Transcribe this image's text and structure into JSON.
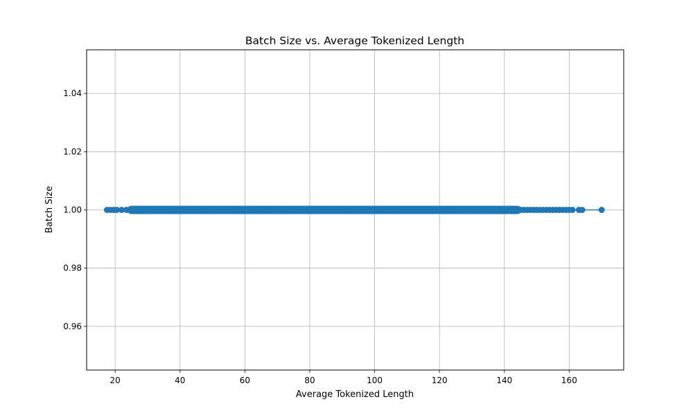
{
  "chart_data": {
    "type": "line",
    "title": "Batch Size vs. Average Tokenized Length",
    "xlabel": "Average Tokenized Length",
    "ylabel": "Batch Size",
    "xlim": [
      11.2,
      176.8
    ],
    "ylim": [
      0.945,
      1.055
    ],
    "x_ticks": [
      20,
      40,
      60,
      80,
      100,
      120,
      140,
      160
    ],
    "x_tick_labels": [
      "20",
      "40",
      "60",
      "80",
      "100",
      "120",
      "140",
      "160"
    ],
    "y_ticks": [
      0.96,
      0.98,
      1.0,
      1.02,
      1.04
    ],
    "y_tick_labels": [
      "0.96",
      "0.98",
      "1.00",
      "1.02",
      "1.04"
    ],
    "grid": true,
    "marker": "circle",
    "series": [
      {
        "color": "#1f77b4",
        "x": [
          17.5,
          18.5,
          19.5,
          20.5,
          22,
          23.5,
          25,
          30,
          35,
          40,
          45,
          50,
          55,
          60,
          65,
          70,
          75,
          80,
          85,
          90,
          95,
          100,
          105,
          110,
          115,
          120,
          125,
          130,
          135,
          140,
          144,
          145,
          146,
          147,
          148,
          149,
          150,
          151,
          152,
          153,
          154,
          155,
          156,
          157,
          158,
          159,
          160,
          161,
          163,
          164,
          170
        ],
        "y": [
          1,
          1,
          1,
          1,
          1,
          1,
          1,
          1,
          1,
          1,
          1,
          1,
          1,
          1,
          1,
          1,
          1,
          1,
          1,
          1,
          1,
          1,
          1,
          1,
          1,
          1,
          1,
          1,
          1,
          1,
          1,
          1,
          1,
          1,
          1,
          1,
          1,
          1,
          1,
          1,
          1,
          1,
          1,
          1,
          1,
          1,
          1,
          1,
          1,
          1,
          1
        ]
      }
    ]
  }
}
